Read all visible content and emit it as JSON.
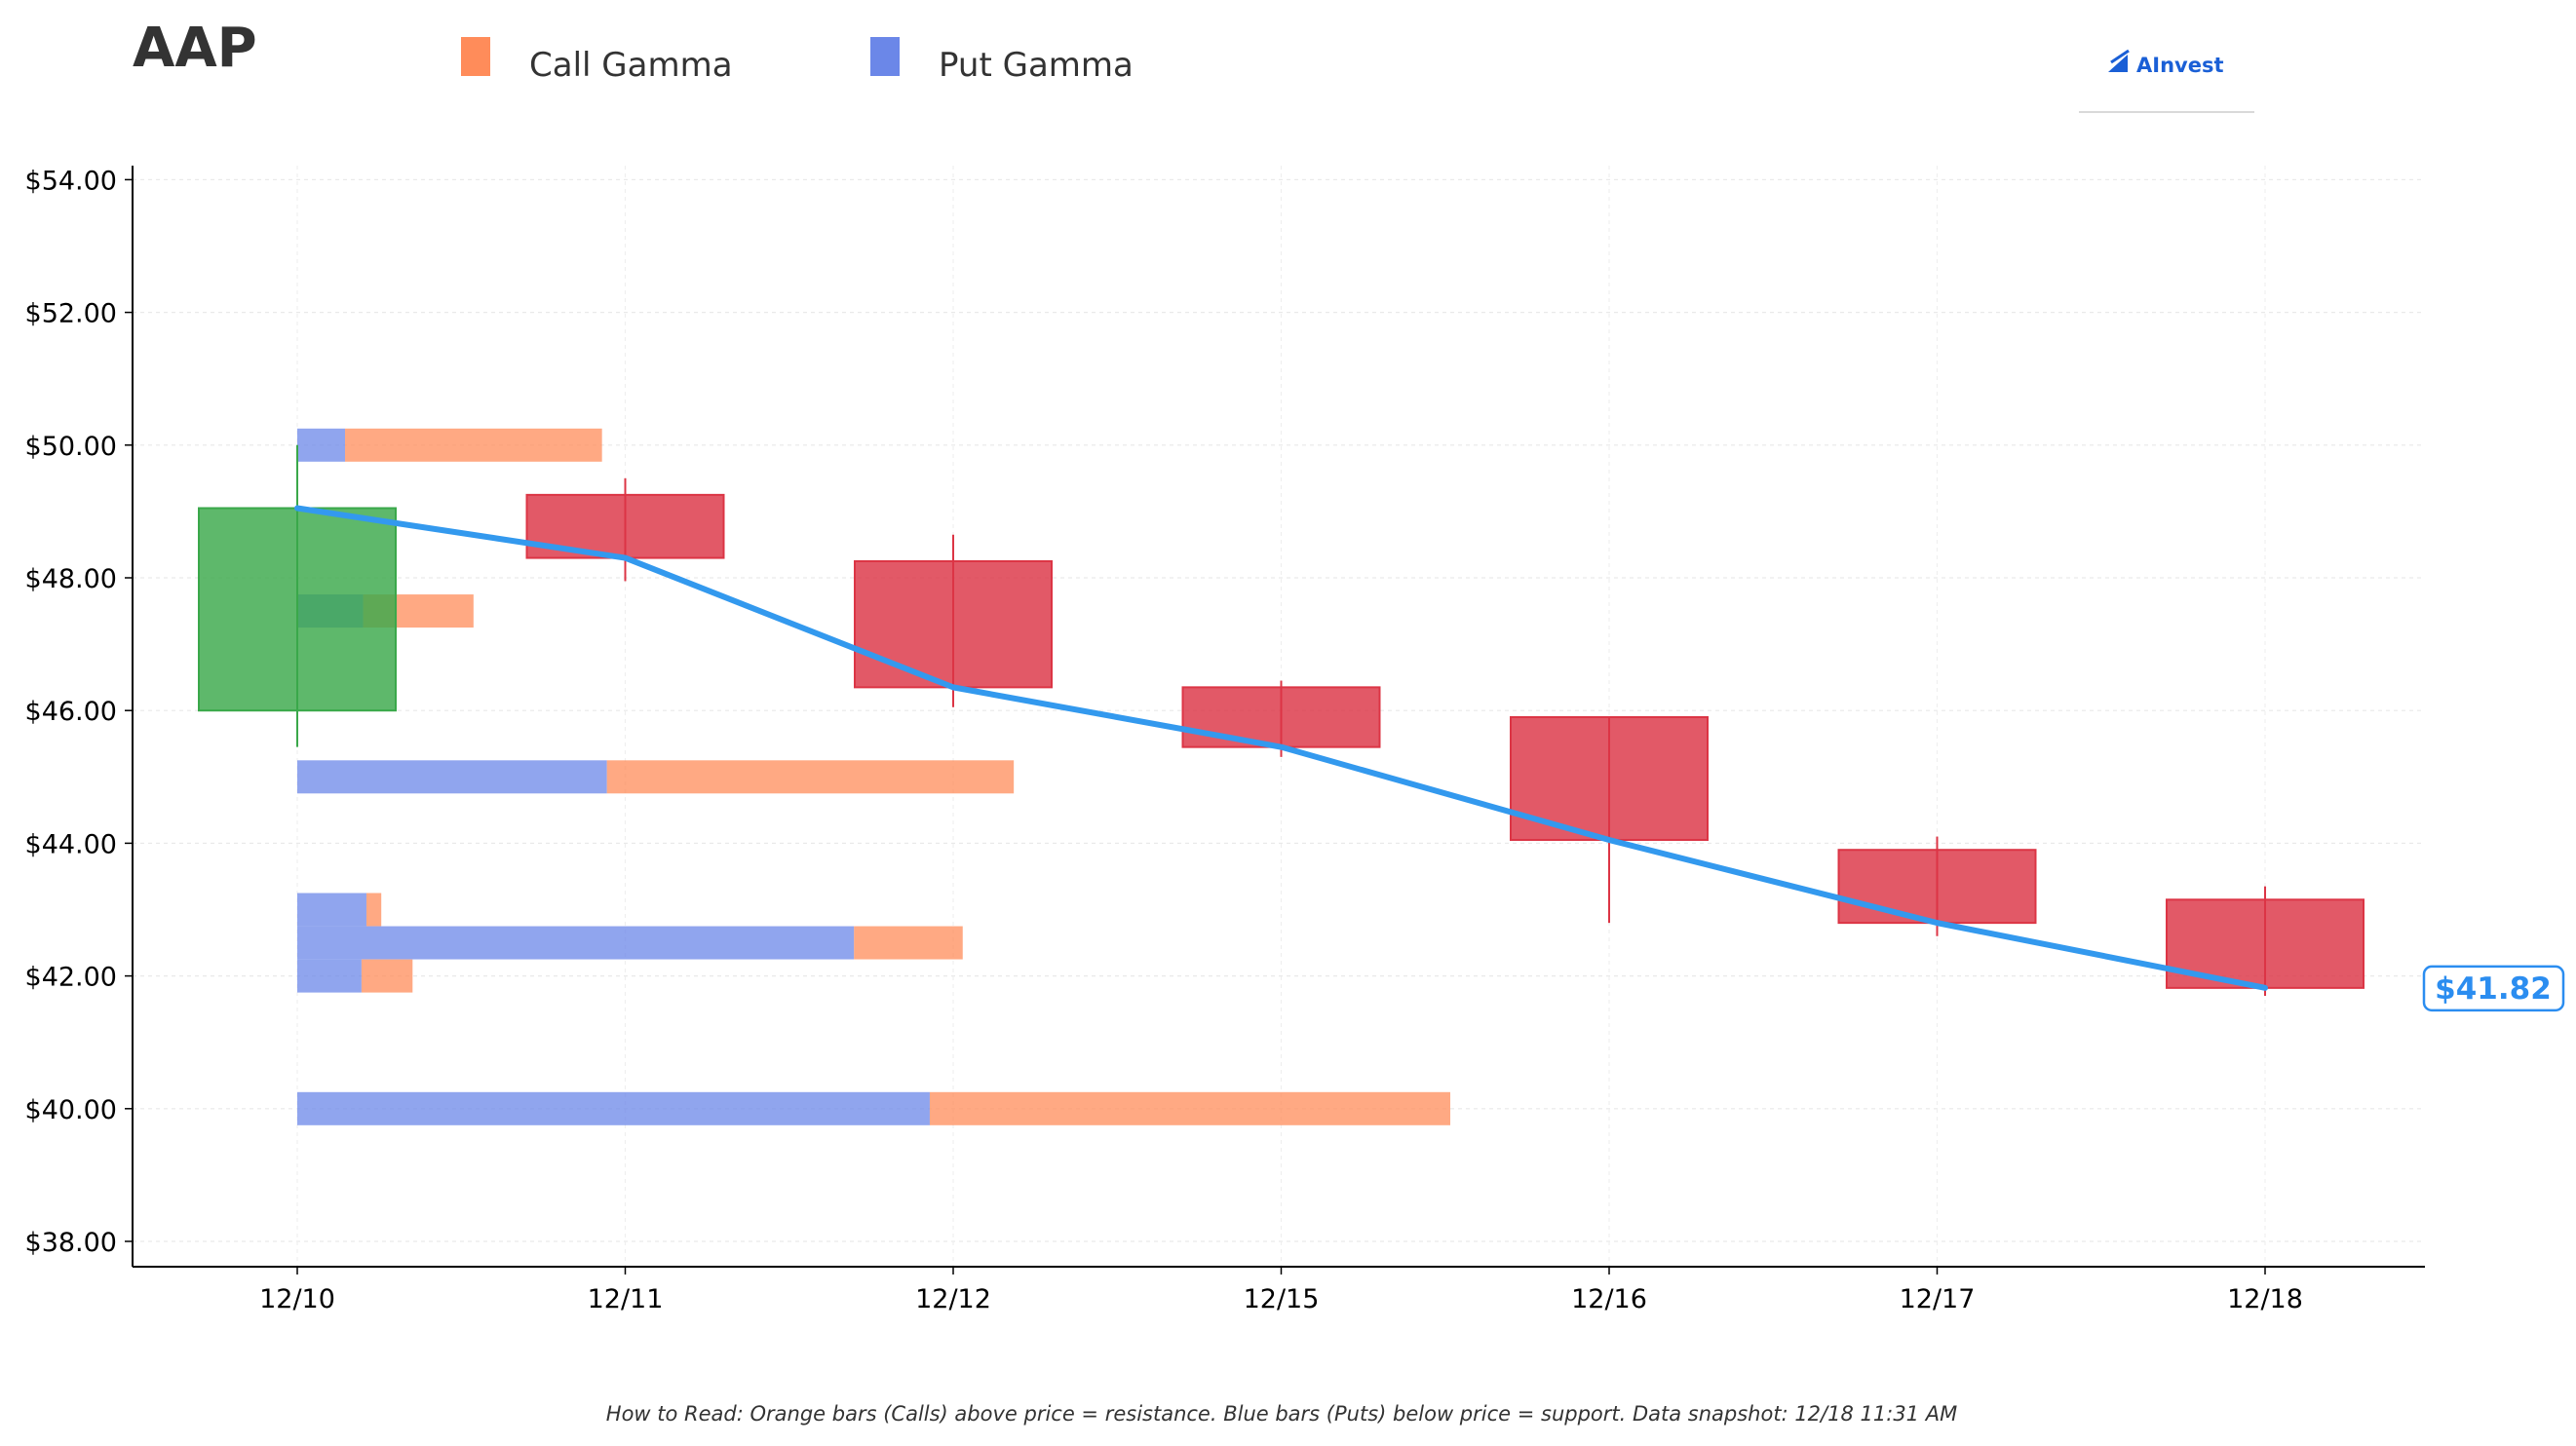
{
  "ticker": "AAP",
  "logo_text": "AInvest",
  "footnote": "How to Read: Orange bars (Calls) above price = resistance. Blue bars (Puts) below price = support. Data snapshot: 12/18 11:31 AM",
  "current_price_label": "$41.82",
  "colors": {
    "call": "#ff8c5a",
    "put": "#6b87e8",
    "up": "#3aa84a",
    "down": "#dc3545",
    "price_line": "#3399ee"
  },
  "chart_data": {
    "type": "candlestick",
    "legend": [
      {
        "name": "Call Gamma",
        "color": "#ff8c5a"
      },
      {
        "name": "Put Gamma",
        "color": "#6b87e8"
      }
    ],
    "categories": [
      "12/10",
      "12/11",
      "12/12",
      "12/15",
      "12/16",
      "12/17",
      "12/18"
    ],
    "ylim": [
      37.6,
      54.0
    ],
    "yticks": [
      38,
      40,
      42,
      44,
      46,
      48,
      50,
      52,
      54
    ],
    "ytick_labels": [
      "$38.00",
      "$40.00",
      "$42.00",
      "$44.00",
      "$46.00",
      "$48.00",
      "$50.00",
      "$52.00",
      "$54.00"
    ],
    "grid": true,
    "candles": [
      {
        "date": "12/10",
        "open": 46.0,
        "high": 50.0,
        "low": 45.45,
        "close": 49.05
      },
      {
        "date": "12/11",
        "open": 49.25,
        "high": 49.5,
        "low": 47.95,
        "close": 48.3
      },
      {
        "date": "12/12",
        "open": 48.25,
        "high": 48.65,
        "low": 46.05,
        "close": 46.35
      },
      {
        "date": "12/15",
        "open": 46.35,
        "high": 46.45,
        "low": 45.3,
        "close": 45.45
      },
      {
        "date": "12/16",
        "open": 45.9,
        "high": 45.9,
        "low": 42.8,
        "close": 44.05
      },
      {
        "date": "12/17",
        "open": 43.9,
        "high": 44.1,
        "low": 42.6,
        "close": 42.8
      },
      {
        "date": "12/18",
        "open": 43.15,
        "high": 43.35,
        "low": 41.7,
        "close": 41.82
      }
    ],
    "price_line": [
      49.05,
      48.3,
      46.35,
      45.45,
      44.05,
      42.8,
      41.82
    ],
    "gamma_levels": [
      {
        "strike": 50.0,
        "put": 0.145,
        "call": 0.78
      },
      {
        "strike": 47.5,
        "put": 0.2,
        "call": 0.335
      },
      {
        "strike": 45.0,
        "put": 0.94,
        "call": 1.235
      },
      {
        "strike": 43.0,
        "put": 0.21,
        "call": 0.045
      },
      {
        "strike": 42.5,
        "put": 1.69,
        "call": 0.33
      },
      {
        "strike": 42.0,
        "put": 0.195,
        "call": 0.155
      },
      {
        "strike": 40.0,
        "put": 1.92,
        "call": 1.58
      }
    ]
  }
}
